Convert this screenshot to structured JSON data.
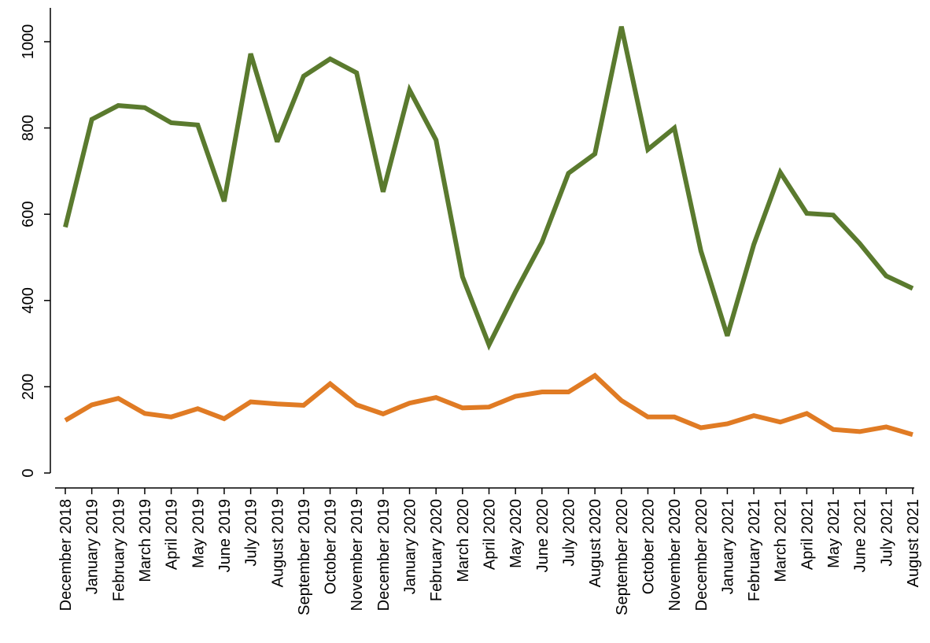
{
  "chart_data": {
    "type": "line",
    "title": "",
    "xlabel": "",
    "ylabel": "",
    "ylim": [
      0,
      1000
    ],
    "yticks": [
      0,
      200,
      400,
      600,
      800,
      1000
    ],
    "grid": false,
    "legend": "none",
    "categories": [
      "December 2018",
      "January 2019",
      "February 2019",
      "March 2019",
      "April 2019",
      "May 2019",
      "June 2019",
      "July 2019",
      "August 2019",
      "September 2019",
      "October 2019",
      "November 2019",
      "December 2019",
      "January 2020",
      "February 2020",
      "March 2020",
      "April 2020",
      "May 2020",
      "June 2020",
      "July 2020",
      "August 2020",
      "September 2020",
      "October 2020",
      "November 2020",
      "December 2020",
      "January 2021",
      "February 2021",
      "March 2021",
      "April 2021",
      "May 2021",
      "June 2021",
      "July 2021",
      "August 2021"
    ],
    "series": [
      {
        "color": "#5a7a2e",
        "values": [
          570,
          820,
          852,
          847,
          812,
          807,
          630,
          972,
          768,
          920,
          960,
          928,
          652,
          888,
          772,
          455,
          297,
          420,
          535,
          695,
          740,
          1035,
          750,
          800,
          515,
          318,
          530,
          697,
          602,
          598,
          532,
          457,
          428
        ]
      },
      {
        "color": "#e07b24",
        "values": [
          122,
          158,
          173,
          138,
          130,
          149,
          126,
          165,
          160,
          157,
          207,
          158,
          137,
          162,
          175,
          151,
          153,
          178,
          188,
          188,
          226,
          168,
          130,
          130,
          105,
          114,
          133,
          118,
          138,
          101,
          96,
          107,
          89
        ]
      }
    ]
  }
}
